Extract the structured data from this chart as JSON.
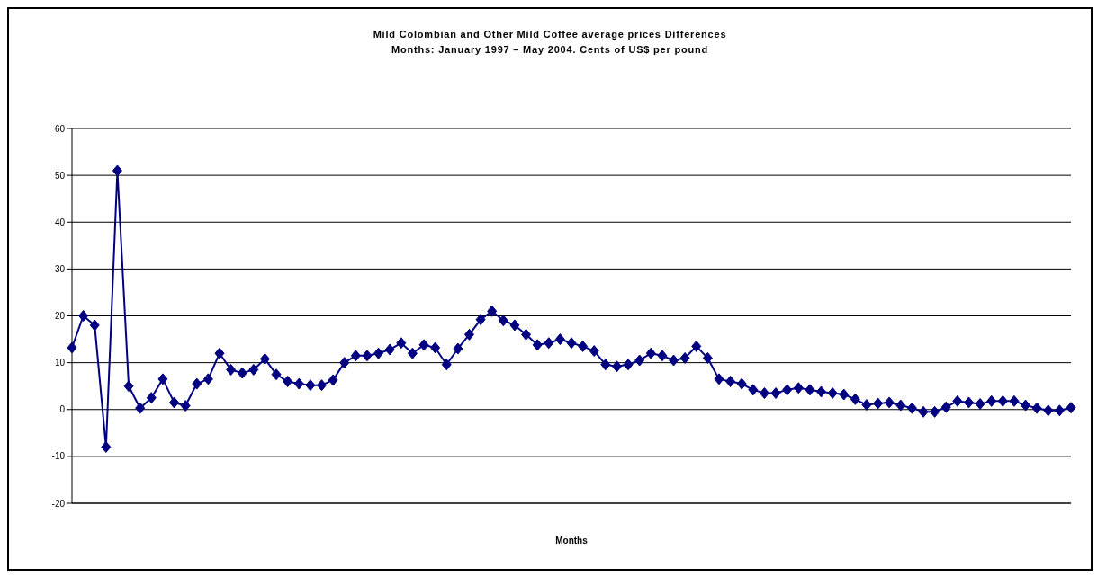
{
  "chart_data": {
    "type": "line",
    "title": "Mild Colombian and Other Mild Coffee average prices Differences",
    "subtitle": "Months: January 1997 – May 2004. Cents of US$ per pound",
    "xlabel": "Months",
    "categories": [
      null,
      null,
      null,
      null,
      null,
      null,
      null,
      null,
      null,
      null,
      null,
      null,
      null,
      null,
      null,
      null,
      null,
      null,
      null,
      null,
      null,
      null,
      null,
      null,
      null,
      null,
      null,
      null,
      null,
      null,
      null,
      null,
      null,
      null,
      null,
      null,
      null,
      null,
      null,
      null,
      null,
      null,
      null,
      null,
      null,
      null,
      null,
      null,
      null,
      null,
      null,
      null,
      null,
      null,
      null,
      null,
      null,
      null,
      null,
      null,
      null,
      null,
      null,
      null,
      null,
      null,
      null,
      null,
      null,
      null,
      null,
      null,
      null,
      null,
      null,
      null,
      null,
      null,
      null,
      null,
      null,
      null,
      null,
      null,
      null,
      null,
      null,
      null,
      null
    ],
    "series": [
      {
        "color": "#000080",
        "values": [
          13.2,
          20,
          18,
          -8,
          51,
          5,
          0.3,
          2.5,
          6.5,
          1.5,
          0.8,
          5.5,
          6.5,
          12,
          8.5,
          7.8,
          8.5,
          10.8,
          7.5,
          6,
          5.5,
          5.2,
          5.2,
          6.3,
          10,
          11.5,
          11.5,
          12,
          12.8,
          14.2,
          12,
          13.8,
          13.2,
          9.6,
          13,
          16,
          19.2,
          21,
          19,
          18,
          16,
          13.8,
          14.2,
          15,
          14.2,
          13.5,
          12.5,
          9.6,
          9.2,
          9.6,
          10.5,
          12,
          11.5,
          10.5,
          11,
          13.5,
          11,
          6.5,
          6,
          5.5,
          4.2,
          3.5,
          3.5,
          4.2,
          4.6,
          4.2,
          3.8,
          3.5,
          3.2,
          2.2,
          1,
          1.3,
          1.5,
          0.9,
          0.3,
          -0.5,
          -0.5,
          0.5,
          1.8,
          1.5,
          1.2,
          1.8,
          1.8,
          1.8,
          0.9,
          0.3,
          -0.2,
          -0.2,
          0.4
        ]
      }
    ],
    "ylim": [
      -20,
      60
    ],
    "yticks": [
      -20,
      -10,
      0,
      10,
      20,
      30,
      40,
      50,
      60
    ],
    "grid": "y",
    "legend": false,
    "tick_labels": "y",
    "marker": "diamond",
    "line_style": "solid"
  }
}
